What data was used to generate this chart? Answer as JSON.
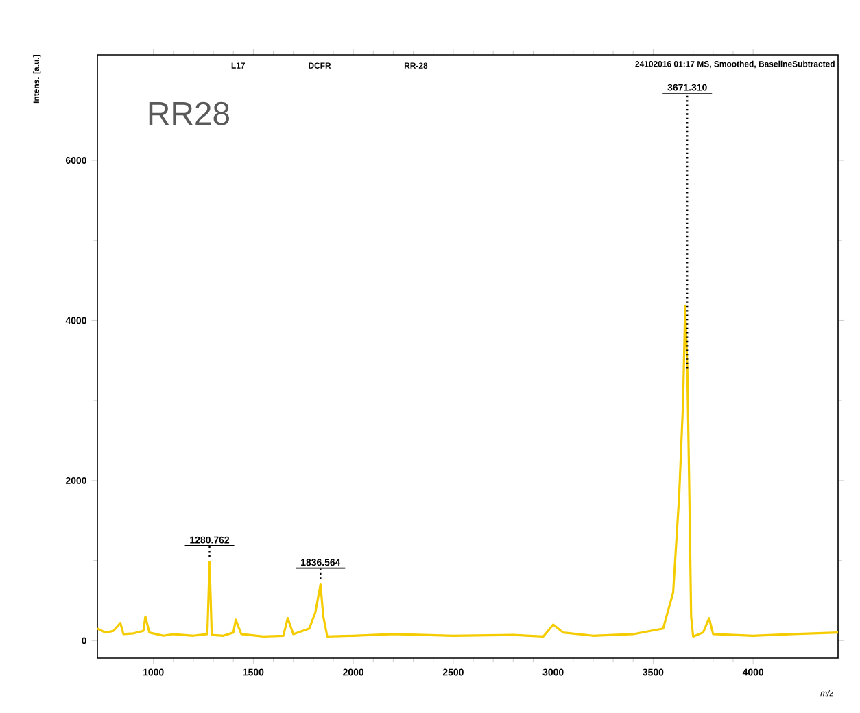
{
  "chart_data": {
    "type": "line",
    "title": "RR28",
    "xlabel": "m/z",
    "ylabel": "Intens. [a.u.]",
    "annotations": [
      "L17",
      "DCFR",
      "RR-28",
      "24102016 01:17 MS, Smoothed, BaselineSubtracted",
      {
        "text": "1280.762",
        "x": 1281,
        "y": 980
      },
      {
        "text": "1836.564",
        "x": 1836,
        "y": 700
      },
      {
        "text": "3671.310",
        "x": 3671,
        "y": 3400
      }
    ],
    "x": [
      720,
      760,
      800,
      835,
      850,
      900,
      950,
      960,
      980,
      1050,
      1100,
      1200,
      1270,
      1281,
      1292,
      1350,
      1400,
      1412,
      1440,
      1550,
      1650,
      1672,
      1700,
      1780,
      1810,
      1836,
      1850,
      1870,
      2000,
      2200,
      2500,
      2800,
      2950,
      3000,
      3050,
      3200,
      3400,
      3550,
      3600,
      3630,
      3650,
      3660,
      3671,
      3680,
      3690,
      3700,
      3750,
      3780,
      3800,
      4000,
      4200,
      4425
    ],
    "series": [
      {
        "color": "#f5cc00",
        "values": [
          150,
          100,
          120,
          220,
          80,
          90,
          120,
          300,
          100,
          60,
          80,
          60,
          80,
          980,
          70,
          60,
          100,
          260,
          80,
          50,
          60,
          280,
          80,
          150,
          350,
          700,
          300,
          50,
          60,
          80,
          60,
          70,
          50,
          200,
          100,
          60,
          80,
          150,
          600,
          1800,
          3000,
          4180,
          3400,
          2000,
          300,
          50,
          100,
          280,
          80,
          60,
          80,
          100
        ]
      }
    ],
    "xlim": [
      720,
      4425
    ],
    "ylim": [
      -220,
      7320
    ],
    "xticks": [
      1000,
      1500,
      2000,
      2500,
      3000,
      3500,
      4000
    ],
    "yticks": [
      0,
      2000,
      4000,
      6000
    ],
    "grid": false,
    "marker": "none",
    "line_style": "solid"
  }
}
